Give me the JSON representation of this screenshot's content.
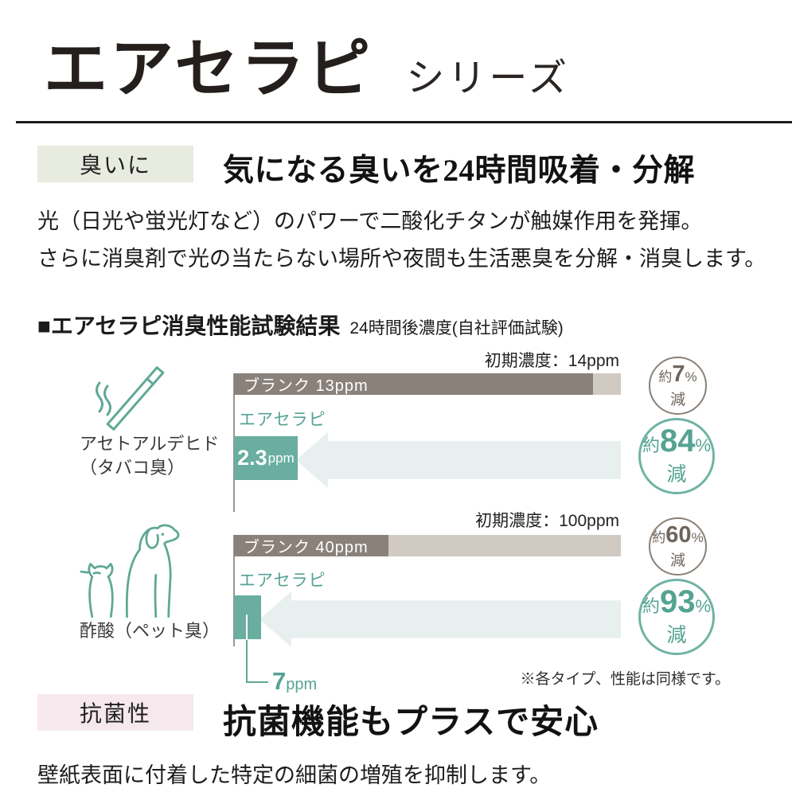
{
  "header": {
    "title": "エアセラピ",
    "series": "シリーズ"
  },
  "odor_section": {
    "badge": "臭いに",
    "heading": "気になる臭いを24時間吸着・分解",
    "body_line1": "光（日光や蛍光灯など）のパワーで二酸化チタンが触媒作用を発揮。",
    "body_line2": "さらに消臭剤で光の当たらない場所や夜間も生活悪臭を分解・消臭します。"
  },
  "results": {
    "title": "■エアセラピ消臭性能試験結果",
    "subtitle": "24時間後濃度(自社評価試験)",
    "footnote": "※各タイプ、性能は同様です。"
  },
  "charts": [
    {
      "substance": "アセトアルデヒド",
      "substance_note": "（タバコ臭）",
      "icon": "cigarette-icon",
      "initial": "初期濃度：14ppm",
      "blank_label": "ブランク 13ppm",
      "product_name": "エアセラピ",
      "product_value": "2.3",
      "product_unit": "ppm",
      "blank_circle": {
        "about": "約",
        "value": "7",
        "pct": "%",
        "down": "減"
      },
      "product_circle": {
        "about": "約",
        "value": "84",
        "pct": "%",
        "down": "減"
      }
    },
    {
      "substance": "酢酸（ペット臭）",
      "substance_note": "",
      "icon": "dog-cat-icon",
      "initial": "初期濃度：100ppm",
      "blank_label": "ブランク 40ppm",
      "product_name": "エアセラピ",
      "callout_value": "7",
      "callout_unit": "ppm",
      "blank_circle": {
        "about": "約",
        "value": "60",
        "pct": "%",
        "down": "減"
      },
      "product_circle": {
        "about": "約",
        "value": "93",
        "pct": "%",
        "down": "減"
      }
    }
  ],
  "antibacterial_section": {
    "badge": "抗菌性",
    "heading": "抗菌機能もプラスで安心",
    "body": "壁紙表面に付着した特定の細菌の増殖を抑制します。"
  },
  "colors": {
    "blank_bar": "#8a817a",
    "blank_track": "#d1cac2",
    "product_bar": "#69aea0",
    "arrow": "#e7f0ef",
    "teal_text": "#55a294",
    "blank_circle_border": "#8b8076",
    "product_circle_border": "#6fb3a4",
    "odor_badge_bg": "#e8ebdf",
    "antibacterial_badge_bg": "#f6e9ee"
  },
  "chart_data": [
    {
      "type": "bar",
      "title": "アセトアルデヒド（タバコ臭）",
      "initial_ppm": 14,
      "categories": [
        "ブランク",
        "エアセラピ"
      ],
      "values": [
        13,
        2.3
      ],
      "unit": "ppm",
      "reductions": [
        "約7%減",
        "約84%減"
      ],
      "xlim": [
        0,
        14
      ],
      "orientation": "horizontal"
    },
    {
      "type": "bar",
      "title": "酢酸（ペット臭）",
      "initial_ppm": 100,
      "categories": [
        "ブランク",
        "エアセラピ"
      ],
      "values": [
        40,
        7
      ],
      "unit": "ppm",
      "reductions": [
        "約60%減",
        "約93%減"
      ],
      "xlim": [
        0,
        100
      ],
      "orientation": "horizontal"
    }
  ]
}
